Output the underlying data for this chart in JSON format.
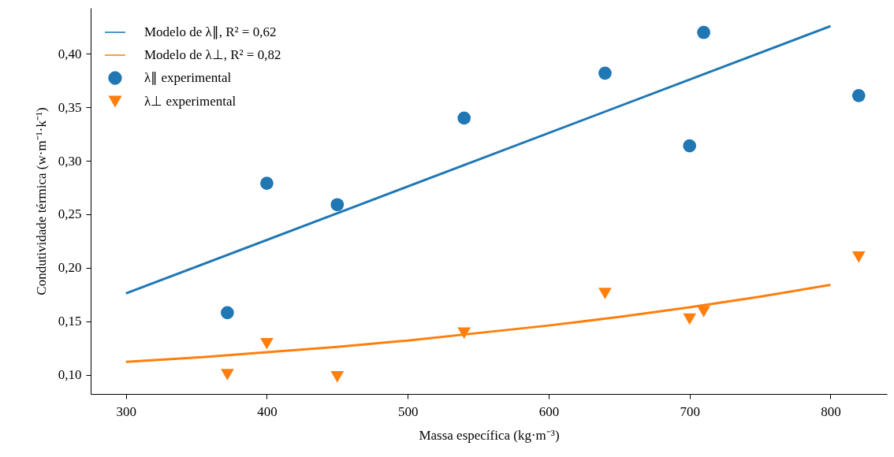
{
  "chart_data": {
    "type": "scatter",
    "xlabel": "Massa específica (kg·m⁻³)",
    "ylabel": "Condutividade térmica (w·m⁻¹·k⁻¹)",
    "xlim": [
      275,
      840
    ],
    "ylim": [
      0.082,
      0.443
    ],
    "xticks": [
      300,
      400,
      500,
      600,
      700,
      800
    ],
    "yticks": [
      {
        "value": 0.1,
        "label": "0,10"
      },
      {
        "value": 0.15,
        "label": "0,15"
      },
      {
        "value": 0.2,
        "label": "0,20"
      },
      {
        "value": 0.25,
        "label": "0,25"
      },
      {
        "value": 0.3,
        "label": "0,30"
      },
      {
        "value": 0.35,
        "label": "0,35"
      },
      {
        "value": 0.4,
        "label": "0,40"
      }
    ],
    "grid": false,
    "legend": "top left",
    "series": [
      {
        "name": "Modelo de λ∥, R² = 0,62",
        "type": "line",
        "color": "#1f77b4",
        "line_style": "solid",
        "x": [
          300,
          800
        ],
        "values": [
          0.176,
          0.426
        ]
      },
      {
        "name": "Modelo de λ⊥, R² = 0,82",
        "type": "line",
        "color": "#ff7f0e",
        "line_style": "solid",
        "x": [
          300,
          350,
          400,
          450,
          500,
          550,
          600,
          650,
          700,
          750,
          800
        ],
        "values": [
          0.112,
          0.116,
          0.121,
          0.126,
          0.132,
          0.139,
          0.146,
          0.154,
          0.163,
          0.173,
          0.184
        ]
      },
      {
        "name": "λ∥ experimental",
        "marker": "circle",
        "color": "#1f77b4",
        "x": [
          372,
          400,
          450,
          540,
          640,
          700,
          710,
          820
        ],
        "values": [
          0.158,
          0.279,
          0.259,
          0.34,
          0.382,
          0.314,
          0.42,
          0.361
        ]
      },
      {
        "name": "λ⊥ experimental",
        "marker": "triangle",
        "color": "#ff7f0e",
        "x": [
          372,
          400,
          450,
          540,
          640,
          700,
          710,
          820
        ],
        "values": [
          0.1,
          0.129,
          0.098,
          0.139,
          0.176,
          0.152,
          0.159,
          0.21
        ]
      }
    ]
  }
}
